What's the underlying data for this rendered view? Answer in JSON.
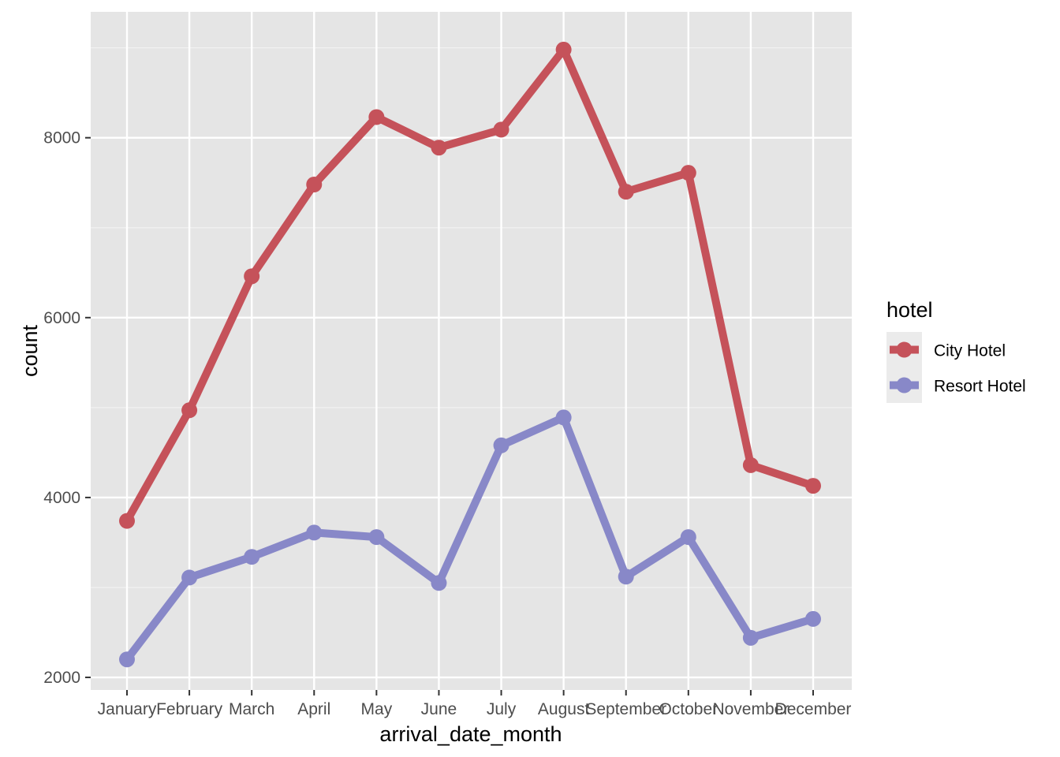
{
  "chart_data": {
    "type": "line",
    "title": "",
    "xlabel": "arrival_date_month",
    "ylabel": "count",
    "categories": [
      "January",
      "February",
      "March",
      "April",
      "May",
      "June",
      "July",
      "August",
      "September",
      "October",
      "November",
      "December"
    ],
    "ylim": [
      1860,
      9400
    ],
    "yticks": [
      2000,
      4000,
      6000,
      8000
    ],
    "grid": true,
    "legend": {
      "title": "hotel",
      "position": "right"
    },
    "series": [
      {
        "name": "City Hotel",
        "color": "#c5525a",
        "values": [
          3740,
          4970,
          6460,
          7480,
          8230,
          7890,
          8090,
          8980,
          7400,
          7610,
          4360,
          4130
        ]
      },
      {
        "name": "Resort Hotel",
        "color": "#8888c8",
        "values": [
          2200,
          3110,
          3340,
          3610,
          3560,
          3050,
          4580,
          4890,
          3120,
          3560,
          2440,
          2650
        ]
      }
    ]
  }
}
